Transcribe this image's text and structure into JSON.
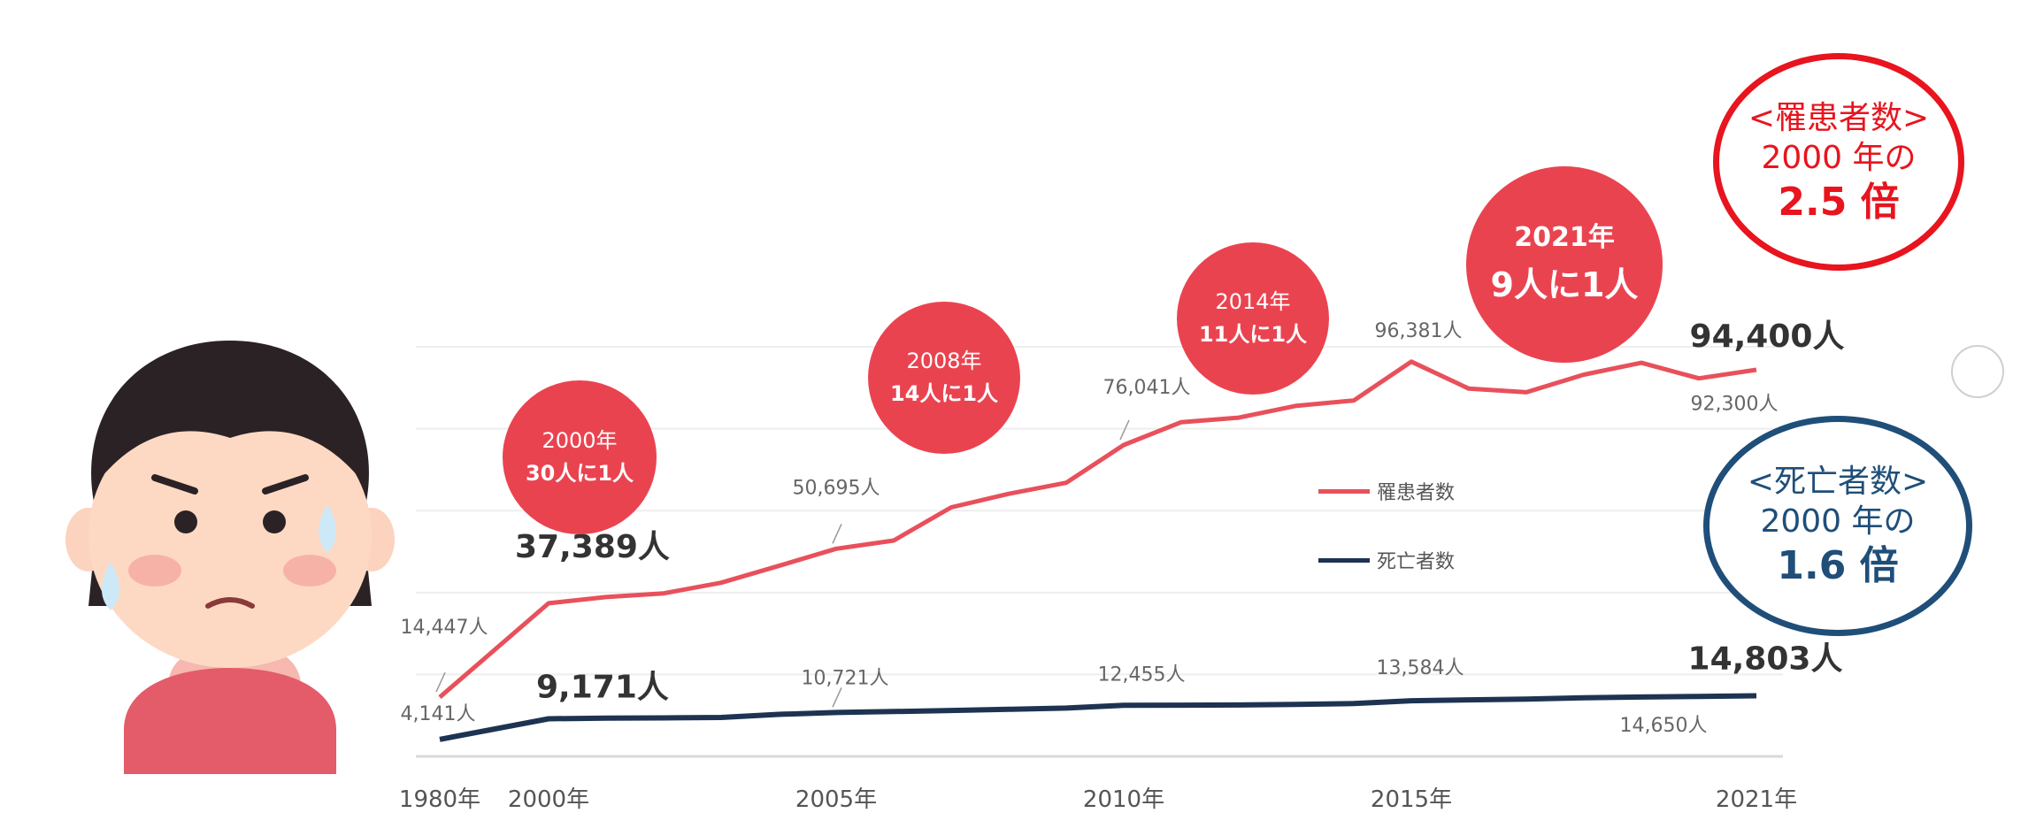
{
  "chart_data": {
    "type": "line",
    "x": [
      1980,
      2000,
      2001,
      2002,
      2003,
      2004,
      2005,
      2006,
      2007,
      2008,
      2009,
      2010,
      2011,
      2012,
      2013,
      2014,
      2015,
      2016,
      2017,
      2018,
      2019,
      2020,
      2021
    ],
    "x_ticks": [
      "1980年",
      "2000年",
      "2005年",
      "2010年",
      "2015年",
      "2021年"
    ],
    "series": [
      {
        "name": "罹患者数",
        "color": "#e8505b",
        "values": [
          14447,
          37389,
          38900,
          39800,
          42400,
          46500,
          50695,
          52700,
          60800,
          64100,
          66800,
          76041,
          81600,
          82700,
          85600,
          86900,
          96381,
          89800,
          88900,
          93200,
          96100,
          92300,
          94400
        ]
      },
      {
        "name": "死亡者数",
        "color": "#1e3352",
        "values": [
          4141,
          9171,
          9350,
          9400,
          9500,
          10250,
          10721,
          10950,
          11200,
          11500,
          11800,
          12455,
          12500,
          12550,
          12700,
          12900,
          13584,
          13800,
          14000,
          14300,
          14500,
          14650,
          14803
        ]
      }
    ],
    "ylim": [
      0,
      110000
    ],
    "grid": true,
    "legend": "right",
    "legend_labels": [
      "罹患者数",
      "死亡者数"
    ],
    "point_labels": {
      "incidence": [
        {
          "label": "14,447人",
          "bold": false
        },
        {
          "label": "37,389人",
          "bold": true
        },
        {
          "label": "50,695人",
          "bold": false
        },
        {
          "label": "76,041人",
          "bold": false
        },
        {
          "label": "96,381人",
          "bold": false
        },
        {
          "label": "92,300人",
          "bold": false
        },
        {
          "label": "94,400人",
          "bold": true
        }
      ],
      "deaths": [
        {
          "label": "4,141人",
          "bold": false
        },
        {
          "label": "9,171人",
          "bold": true
        },
        {
          "label": "10,721人",
          "bold": false
        },
        {
          "label": "12,455人",
          "bold": false
        },
        {
          "label": "13,584人",
          "bold": false
        },
        {
          "label": "14,650人",
          "bold": false
        },
        {
          "label": "14,803人",
          "bold": true
        }
      ]
    },
    "bubbles": [
      {
        "year": "2000年",
        "ratio": "30人に1人"
      },
      {
        "year": "2008年",
        "ratio": "14人に1人"
      },
      {
        "year": "2014年",
        "ratio": "11人に1人"
      },
      {
        "year": "2021年",
        "ratio": "9人に1人"
      }
    ]
  },
  "callouts": {
    "incidence": {
      "line1": "<罹患者数>",
      "line2": "2000 年の",
      "line3": "2.5 倍",
      "color": "#e8141e"
    },
    "deaths": {
      "line1": "<死亡者数>",
      "line2": "2000 年の",
      "line3": "1.6 倍",
      "color": "#1f4e79"
    }
  }
}
